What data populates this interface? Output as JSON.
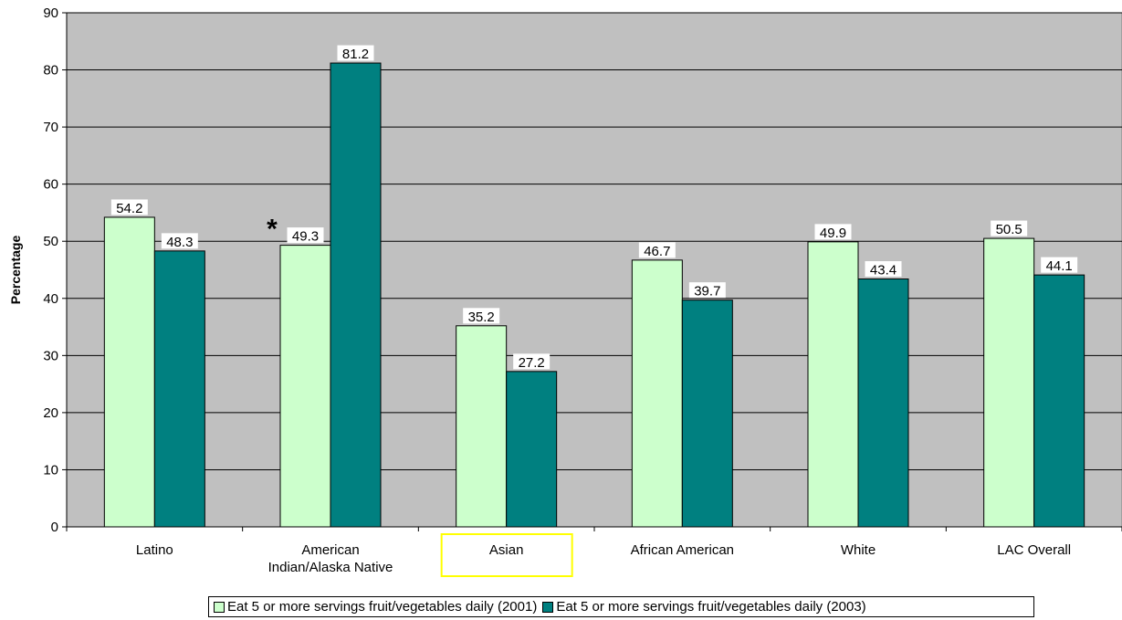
{
  "chart_data": {
    "type": "bar",
    "title": "",
    "xlabel": "",
    "ylabel": "Percentage",
    "ylim": [
      0,
      90
    ],
    "yticks": [
      "0",
      "10",
      "20",
      "30",
      "40",
      "50",
      "60",
      "70",
      "80",
      "90"
    ],
    "grid": true,
    "legend_position": "bottom",
    "categories": [
      [
        "Latino"
      ],
      [
        "American",
        "Indian/Alaska Native"
      ],
      [
        "Asian"
      ],
      [
        "African American"
      ],
      [
        "White"
      ],
      [
        "LAC Overall"
      ]
    ],
    "highlighted_category": "Asian",
    "series": [
      {
        "name": "Eat 5 or more servings fruit/vegetables daily (2001)",
        "values": [
          54.2,
          49.3,
          35.2,
          46.7,
          49.9,
          50.5
        ],
        "labels": [
          "54.2",
          "49.3",
          "35.2",
          "46.7",
          "49.9",
          "50.5"
        ],
        "color": "#CCFFCC"
      },
      {
        "name": "Eat 5 or more servings fruit/vegetables daily (2003)",
        "values": [
          48.3,
          81.2,
          27.2,
          39.7,
          43.4,
          44.1
        ],
        "labels": [
          "48.3",
          "81.2",
          "27.2",
          "39.7",
          "43.4",
          "44.1"
        ],
        "color": "#008080"
      }
    ],
    "annotations": [
      {
        "text": "*",
        "category": "American Indian/Alaska Native",
        "series": 0
      }
    ],
    "plot_background": "#C0C0C0",
    "highlight_color": "#FFFF00"
  }
}
